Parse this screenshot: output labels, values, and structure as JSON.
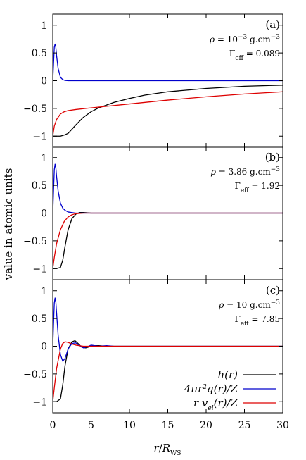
{
  "chart_data": {
    "type": "line",
    "ylabel": "value in atomic units",
    "xlabel": "r/R_WS",
    "xlim": [
      0,
      30
    ],
    "ylim": [
      -1.2,
      1.2
    ],
    "x_ticks": [
      0,
      5,
      10,
      15,
      20,
      25,
      30
    ],
    "y_ticks": [
      -1,
      -0.5,
      0,
      0.5,
      1
    ],
    "y_tick_labels": [
      "−1",
      "−0.5",
      "0",
      "0.5",
      "1"
    ],
    "grid": false,
    "legend": {
      "placement": "bottom-right of panel (c)",
      "entries": [
        {
          "label": "h(r)",
          "color": "#000000"
        },
        {
          "label": "4πr²q(r)/Z",
          "color": "#0000cc"
        },
        {
          "label": "r v_el(r)/Z",
          "color": "#dd0000"
        }
      ]
    },
    "panels": [
      {
        "tag": "(a)",
        "rho_text": "ρ = 10⁻³ g.cm⁻³",
        "gamma_text": "Γ_eff = 0.089",
        "series": [
          {
            "name": "h(r)",
            "x": [
              0,
              0.5,
              1,
              1.5,
              2,
              3,
              4,
              5,
              6,
              8,
              10,
              12,
              15,
              20,
              25,
              30
            ],
            "y": [
              -1,
              -1,
              -1,
              -0.98,
              -0.95,
              -0.8,
              -0.66,
              -0.56,
              -0.49,
              -0.39,
              -0.32,
              -0.26,
              -0.2,
              -0.14,
              -0.1,
              -0.08
            ]
          },
          {
            "name": "4πr²q(r)/Z",
            "x": [
              0,
              0.1,
              0.2,
              0.3,
              0.4,
              0.5,
              0.7,
              1,
              1.3,
              1.6,
              2,
              3,
              5,
              30
            ],
            "y": [
              0,
              0.3,
              0.6,
              0.66,
              0.6,
              0.45,
              0.22,
              0.06,
              0.02,
              0.005,
              0,
              0,
              0,
              0
            ]
          },
          {
            "name": "r v_el(r)/Z",
            "x": [
              0,
              0.2,
              0.5,
              1,
              1.5,
              2,
              3,
              5,
              10,
              15,
              20,
              25,
              30
            ],
            "y": [
              -1,
              -0.82,
              -0.7,
              -0.6,
              -0.56,
              -0.54,
              -0.52,
              -0.49,
              -0.42,
              -0.35,
              -0.29,
              -0.24,
              -0.2
            ]
          }
        ]
      },
      {
        "tag": "(b)",
        "rho_text": "ρ = 3.86 g.cm⁻³",
        "gamma_text": "Γ_eff = 1.92",
        "series": [
          {
            "name": "h(r)",
            "x": [
              0,
              0.5,
              1,
              1.3,
              1.6,
              2,
              2.5,
              3,
              3.5,
              4,
              5,
              6,
              30
            ],
            "y": [
              -1,
              -1,
              -0.98,
              -0.85,
              -0.6,
              -0.3,
              -0.1,
              -0.02,
              0.01,
              0.01,
              0,
              0,
              0
            ]
          },
          {
            "name": "4πr²q(r)/Z",
            "x": [
              0,
              0.1,
              0.2,
              0.3,
              0.4,
              0.5,
              0.7,
              1,
              1.3,
              1.6,
              2,
              2.5,
              3,
              4,
              30
            ],
            "y": [
              0,
              0.4,
              0.78,
              0.88,
              0.82,
              0.66,
              0.4,
              0.18,
              0.09,
              0.05,
              0.02,
              0.01,
              0,
              0,
              0
            ]
          },
          {
            "name": "r v_el(r)/Z",
            "x": [
              0,
              0.2,
              0.5,
              1,
              1.5,
              2,
              2.5,
              3,
              4,
              5,
              6,
              30
            ],
            "y": [
              -1,
              -0.8,
              -0.55,
              -0.3,
              -0.15,
              -0.07,
              -0.03,
              -0.01,
              0,
              0,
              0,
              0
            ]
          }
        ]
      },
      {
        "tag": "(c)",
        "rho_text": "ρ = 10 g.cm⁻³",
        "gamma_text": "Γ_eff = 7.85",
        "series": [
          {
            "name": "h(r)",
            "x": [
              0,
              0.5,
              1,
              1.3,
              1.6,
              2,
              2.5,
              2.9,
              3.3,
              3.8,
              4.3,
              4.8,
              5.3,
              6,
              7,
              8,
              10,
              30
            ],
            "y": [
              -1,
              -1,
              -0.95,
              -0.7,
              -0.35,
              -0.05,
              0.08,
              0.1,
              0.05,
              -0.02,
              -0.03,
              -0.01,
              0.01,
              0.01,
              0,
              0,
              0,
              0
            ]
          },
          {
            "name": "4πr²q(r)/Z",
            "x": [
              0,
              0.1,
              0.2,
              0.3,
              0.4,
              0.5,
              0.7,
              1,
              1.3,
              1.6,
              2,
              2.5,
              3,
              3.5,
              4,
              4.5,
              5,
              6,
              7,
              8,
              30
            ],
            "y": [
              0,
              0.4,
              0.78,
              0.87,
              0.8,
              0.6,
              0.2,
              -0.15,
              -0.27,
              -0.22,
              -0.05,
              0.05,
              0.06,
              0.01,
              -0.03,
              -0.01,
              0.02,
              0,
              0.01,
              0,
              0
            ]
          },
          {
            "name": "r v_el(r)/Z",
            "x": [
              0,
              0.2,
              0.5,
              1,
              1.3,
              1.6,
              2,
              2.5,
              3,
              3.5,
              4,
              5,
              6,
              30
            ],
            "y": [
              -1,
              -0.75,
              -0.4,
              -0.05,
              0.05,
              0.08,
              0.07,
              0.04,
              0.02,
              0.01,
              0,
              0,
              0,
              0
            ]
          }
        ]
      }
    ]
  }
}
